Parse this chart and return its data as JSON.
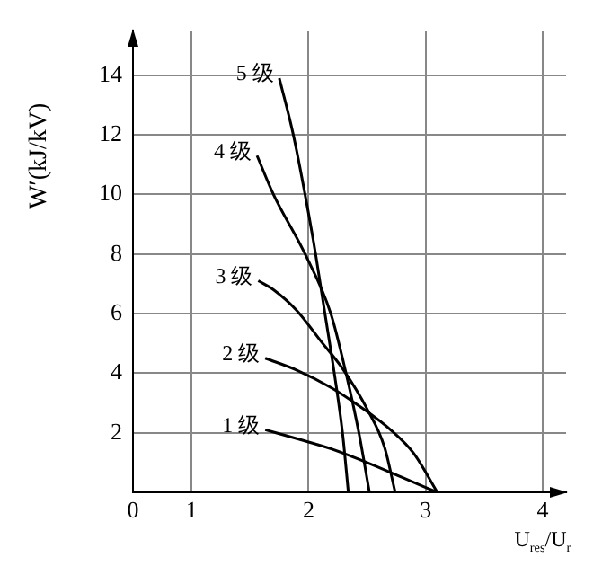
{
  "chart_data": {
    "type": "line",
    "xlabel": "U$_{res}$/U$_{r}$",
    "ylabel": "W′(kJ/kV)",
    "xlim": [
      0.5,
      4.2
    ],
    "xticks": [
      {
        "value": 0.5,
        "label": "0"
      },
      1,
      2,
      3,
      4
    ],
    "ylim": [
      0,
      15.5
    ],
    "yticks": [
      2,
      4,
      6,
      8,
      10,
      12,
      14
    ],
    "grid": true,
    "legend": false,
    "marker": "none",
    "line_style": "solid",
    "series": [
      {
        "name": "5 级",
        "color": "#000000",
        "x": [
          1.75,
          1.87,
          1.97,
          2.06,
          2.14,
          2.22,
          2.29,
          2.34
        ],
        "values": [
          13.9,
          12,
          10,
          8,
          6,
          4,
          2,
          0
        ]
      },
      {
        "name": "4 级",
        "color": "#000000",
        "x": [
          1.56,
          1.7,
          1.97,
          2.19,
          2.32,
          2.43,
          2.52
        ],
        "values": [
          11.3,
          10,
          8,
          6,
          4,
          2,
          0
        ]
      },
      {
        "name": "3 级",
        "color": "#000000",
        "x": [
          1.57,
          1.7,
          1.9,
          2.1,
          2.3,
          2.5,
          2.65,
          2.74
        ],
        "values": [
          7.1,
          6.8,
          6.1,
          5.1,
          4.1,
          2.8,
          1.5,
          0
        ]
      },
      {
        "name": "2 级",
        "color": "#000000",
        "x": [
          1.63,
          1.9,
          2.2,
          2.45,
          2.7,
          2.9,
          3.1
        ],
        "values": [
          4.5,
          4.1,
          3.5,
          2.85,
          2.1,
          1.3,
          0
        ]
      },
      {
        "name": "1 级",
        "color": "#000000",
        "x": [
          1.63,
          1.9,
          2.2,
          2.5,
          2.8,
          3.1
        ],
        "values": [
          2.1,
          1.8,
          1.45,
          1.0,
          0.5,
          0
        ]
      }
    ]
  }
}
